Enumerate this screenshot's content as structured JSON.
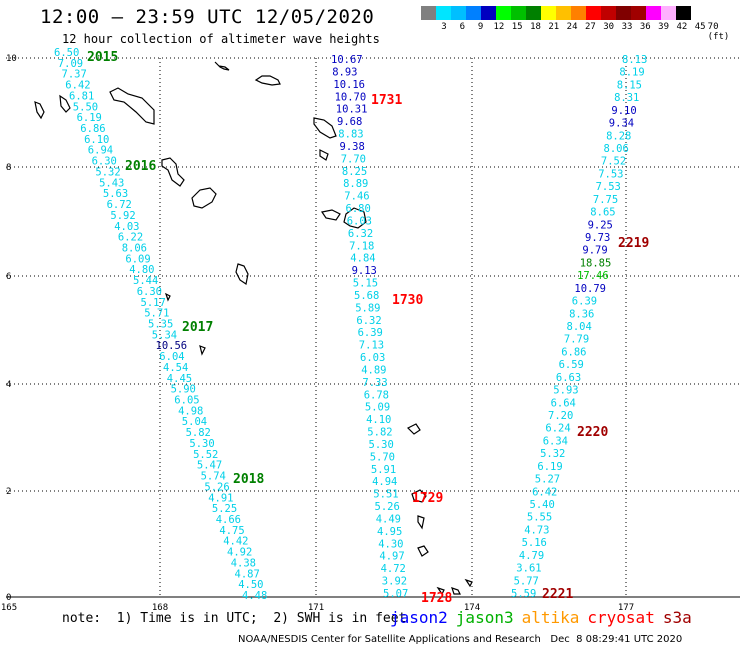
{
  "header": {
    "title": "12:00 – 23:59 UTC 12/05/2020",
    "subtitle": "12 hour collection of altimeter wave heights"
  },
  "colorbar": {
    "colors": [
      "#808080",
      "#00e5ff",
      "#00bfff",
      "#0080ff",
      "#0000c0",
      "#00ff00",
      "#00c000",
      "#008000",
      "#ffff00",
      "#ffc000",
      "#ff8000",
      "#ff0000",
      "#c00000",
      "#800000",
      "#a00000",
      "#ff00ff",
      "#ffb0ff",
      "#000000"
    ],
    "labels": [
      "3",
      "6",
      "9",
      "12",
      "15",
      "18",
      "21",
      "24",
      "27",
      "30",
      "33",
      "36",
      "39",
      "42",
      "45",
      "70 (ft)"
    ]
  },
  "axes": {
    "x_ticks": [
      "165",
      "168",
      "171",
      "174",
      "177"
    ],
    "y_ticks": [
      "0",
      "2",
      "4",
      "6",
      "8",
      "10"
    ]
  },
  "tracks": [
    {
      "name": "west",
      "points": [
        {
          "v": "6.50",
          "c": "#00d0e8"
        },
        {
          "v": "7.09",
          "c": "#00d0e8"
        },
        {
          "v": "7.37",
          "c": "#00d0e8"
        },
        {
          "v": "6.42",
          "c": "#00d0e8"
        },
        {
          "v": "6.81",
          "c": "#00d0e8"
        },
        {
          "v": "5.50",
          "c": "#00d0e8"
        },
        {
          "v": "6.19",
          "c": "#00d0e8"
        },
        {
          "v": "6.86",
          "c": "#00d0e8"
        },
        {
          "v": "6.10",
          "c": "#00d0e8"
        },
        {
          "v": "6.94",
          "c": "#00d0e8"
        },
        {
          "v": "6.30",
          "c": "#00d0e8"
        },
        {
          "v": "5.32",
          "c": "#00d0e8"
        },
        {
          "v": "5.43",
          "c": "#00d0e8"
        },
        {
          "v": "5.63",
          "c": "#00d0e8"
        },
        {
          "v": "6.72",
          "c": "#00d0e8"
        },
        {
          "v": "5.92",
          "c": "#00d0e8"
        },
        {
          "v": "4.03",
          "c": "#00d0e8"
        },
        {
          "v": "6.22",
          "c": "#00d0e8"
        },
        {
          "v": "8.06",
          "c": "#00d0e8"
        },
        {
          "v": "6.09",
          "c": "#00d0e8"
        },
        {
          "v": "4.80",
          "c": "#00d0e8"
        },
        {
          "v": "5.44",
          "c": "#00d0e8"
        },
        {
          "v": "6.30",
          "c": "#00d0e8"
        },
        {
          "v": "5.17",
          "c": "#00d0e8"
        },
        {
          "v": "5.71",
          "c": "#00d0e8"
        },
        {
          "v": "5.35",
          "c": "#00d0e8"
        },
        {
          "v": "5.34",
          "c": "#00d0e8"
        },
        {
          "v": "10.56",
          "c": "#000080"
        },
        {
          "v": "6.04",
          "c": "#00d0e8"
        },
        {
          "v": "4.54",
          "c": "#00d0e8"
        },
        {
          "v": "4.45",
          "c": "#00d0e8"
        },
        {
          "v": "5.90",
          "c": "#00d0e8"
        },
        {
          "v": "6.05",
          "c": "#00d0e8"
        },
        {
          "v": "4.98",
          "c": "#00d0e8"
        },
        {
          "v": "5.04",
          "c": "#00d0e8"
        },
        {
          "v": "5.82",
          "c": "#00d0e8"
        },
        {
          "v": "5.30",
          "c": "#00d0e8"
        },
        {
          "v": "5.52",
          "c": "#00d0e8"
        },
        {
          "v": "5.47",
          "c": "#00d0e8"
        },
        {
          "v": "5.74",
          "c": "#00d0e8"
        },
        {
          "v": "5.26",
          "c": "#00d0e8"
        },
        {
          "v": "4.91",
          "c": "#00d0e8"
        },
        {
          "v": "5.25",
          "c": "#00d0e8"
        },
        {
          "v": "4.66",
          "c": "#00d0e8"
        },
        {
          "v": "4.75",
          "c": "#00d0e8"
        },
        {
          "v": "4.42",
          "c": "#00d0e8"
        },
        {
          "v": "4.92",
          "c": "#00d0e8"
        },
        {
          "v": "4.38",
          "c": "#00d0e8"
        },
        {
          "v": "4.87",
          "c": "#00d0e8"
        },
        {
          "v": "4.50",
          "c": "#00d0e8"
        },
        {
          "v": "4.48",
          "c": "#00d0e8"
        }
      ]
    },
    {
      "name": "middle",
      "points": [
        {
          "v": "10.67",
          "c": "#0000c0"
        },
        {
          "v": "8.93",
          "c": "#0000c0"
        },
        {
          "v": "10.16",
          "c": "#0000c0"
        },
        {
          "v": "10.70",
          "c": "#0000c0"
        },
        {
          "v": "10.31",
          "c": "#0000c0"
        },
        {
          "v": "9.68",
          "c": "#0000c0"
        },
        {
          "v": "8.83",
          "c": "#00d0e8"
        },
        {
          "v": "9.38",
          "c": "#0000c0"
        },
        {
          "v": "7.70",
          "c": "#00d0e8"
        },
        {
          "v": "8.25",
          "c": "#00d0e8"
        },
        {
          "v": "8.89",
          "c": "#00d0e8"
        },
        {
          "v": "7.46",
          "c": "#00d0e8"
        },
        {
          "v": "6.80",
          "c": "#00d0e8"
        },
        {
          "v": "6.03",
          "c": "#00d0e8"
        },
        {
          "v": "6.32",
          "c": "#00d0e8"
        },
        {
          "v": "7.18",
          "c": "#00d0e8"
        },
        {
          "v": "4.84",
          "c": "#00d0e8"
        },
        {
          "v": "9.13",
          "c": "#0000c0"
        },
        {
          "v": "5.15",
          "c": "#00d0e8"
        },
        {
          "v": "5.68",
          "c": "#00d0e8"
        },
        {
          "v": "5.89",
          "c": "#00d0e8"
        },
        {
          "v": "6.32",
          "c": "#00d0e8"
        },
        {
          "v": "6.39",
          "c": "#00d0e8"
        },
        {
          "v": "7.13",
          "c": "#00d0e8"
        },
        {
          "v": "6.03",
          "c": "#00d0e8"
        },
        {
          "v": "4.89",
          "c": "#00d0e8"
        },
        {
          "v": "7.33",
          "c": "#00d0e8"
        },
        {
          "v": "6.78",
          "c": "#00d0e8"
        },
        {
          "v": "5.09",
          "c": "#00d0e8"
        },
        {
          "v": "4.10",
          "c": "#00d0e8"
        },
        {
          "v": "5.82",
          "c": "#00d0e8"
        },
        {
          "v": "5.30",
          "c": "#00d0e8"
        },
        {
          "v": "5.70",
          "c": "#00d0e8"
        },
        {
          "v": "5.91",
          "c": "#00d0e8"
        },
        {
          "v": "4.94",
          "c": "#00d0e8"
        },
        {
          "v": "5.51",
          "c": "#00d0e8"
        },
        {
          "v": "5.26",
          "c": "#00d0e8"
        },
        {
          "v": "4.49",
          "c": "#00d0e8"
        },
        {
          "v": "4.95",
          "c": "#00d0e8"
        },
        {
          "v": "4.30",
          "c": "#00d0e8"
        },
        {
          "v": "4.97",
          "c": "#00d0e8"
        },
        {
          "v": "4.72",
          "c": "#00d0e8"
        },
        {
          "v": "3.92",
          "c": "#00d0e8"
        },
        {
          "v": "5.07",
          "c": "#00d0e8"
        }
      ]
    },
    {
      "name": "east",
      "points": [
        {
          "v": "8.13",
          "c": "#00d0e8"
        },
        {
          "v": "8.19",
          "c": "#00d0e8"
        },
        {
          "v": "8.15",
          "c": "#00d0e8"
        },
        {
          "v": "8.31",
          "c": "#00d0e8"
        },
        {
          "v": "9.10",
          "c": "#0000c0"
        },
        {
          "v": "9.34",
          "c": "#0000c0"
        },
        {
          "v": "8.28",
          "c": "#00d0e8"
        },
        {
          "v": "8.06",
          "c": "#00d0e8"
        },
        {
          "v": "7.52",
          "c": "#00d0e8"
        },
        {
          "v": "7.53",
          "c": "#00d0e8"
        },
        {
          "v": "7.53",
          "c": "#00d0e8"
        },
        {
          "v": "7.75",
          "c": "#00d0e8"
        },
        {
          "v": "8.65",
          "c": "#00d0e8"
        },
        {
          "v": "9.25",
          "c": "#0000c0"
        },
        {
          "v": "9.73",
          "c": "#0000c0"
        },
        {
          "v": "9.79",
          "c": "#0000c0"
        },
        {
          "v": "18.85",
          "c": "#008000"
        },
        {
          "v": "17.46",
          "c": "#00c000"
        },
        {
          "v": "10.79",
          "c": "#0000c0"
        },
        {
          "v": "6.39",
          "c": "#00d0e8"
        },
        {
          "v": "8.36",
          "c": "#00d0e8"
        },
        {
          "v": "8.04",
          "c": "#00d0e8"
        },
        {
          "v": "7.79",
          "c": "#00d0e8"
        },
        {
          "v": "6.86",
          "c": "#00d0e8"
        },
        {
          "v": "6.59",
          "c": "#00d0e8"
        },
        {
          "v": "6.63",
          "c": "#00d0e8"
        },
        {
          "v": "5.93",
          "c": "#00d0e8"
        },
        {
          "v": "6.64",
          "c": "#00d0e8"
        },
        {
          "v": "7.20",
          "c": "#00d0e8"
        },
        {
          "v": "6.24",
          "c": "#00d0e8"
        },
        {
          "v": "6.34",
          "c": "#00d0e8"
        },
        {
          "v": "5.32",
          "c": "#00d0e8"
        },
        {
          "v": "6.19",
          "c": "#00d0e8"
        },
        {
          "v": "5.27",
          "c": "#00d0e8"
        },
        {
          "v": "6.42",
          "c": "#00d0e8"
        },
        {
          "v": "5.40",
          "c": "#00d0e8"
        },
        {
          "v": "5.55",
          "c": "#00d0e8"
        },
        {
          "v": "4.73",
          "c": "#00d0e8"
        },
        {
          "v": "5.16",
          "c": "#00d0e8"
        },
        {
          "v": "4.79",
          "c": "#00d0e8"
        },
        {
          "v": "3.61",
          "c": "#00d0e8"
        },
        {
          "v": "5.77",
          "c": "#00d0e8"
        },
        {
          "v": "5.59",
          "c": "#00d0e8"
        }
      ]
    }
  ],
  "time_labels": [
    {
      "text": "2015",
      "c": "#008000"
    },
    {
      "text": "2016",
      "c": "#008000"
    },
    {
      "text": "2017",
      "c": "#008000"
    },
    {
      "text": "2018",
      "c": "#008000"
    },
    {
      "text": "1731",
      "c": "#ff0000"
    },
    {
      "text": "1730",
      "c": "#ff0000"
    },
    {
      "text": "1729",
      "c": "#ff0000"
    },
    {
      "text": "1728",
      "c": "#ff0000"
    },
    {
      "text": "2219",
      "c": "#a00000"
    },
    {
      "text": "2220",
      "c": "#a00000"
    },
    {
      "text": "2221",
      "c": "#a00000"
    }
  ],
  "footer": {
    "note": "note:  1) Time is in UTC;  2) SWH is in feet",
    "legend": [
      {
        "text": "jason2",
        "c": "#0000ff"
      },
      {
        "text": "jason3",
        "c": "#00b000"
      },
      {
        "text": "altika",
        "c": "#ff9900"
      },
      {
        "text": "cryosat",
        "c": "#ff0000"
      },
      {
        "text": "s3a",
        "c": "#a00000"
      }
    ],
    "credit": "NOAA/NESDIS Center for Satellite Applications and Research   Dec  8 08:29:41 UTC 2020"
  }
}
